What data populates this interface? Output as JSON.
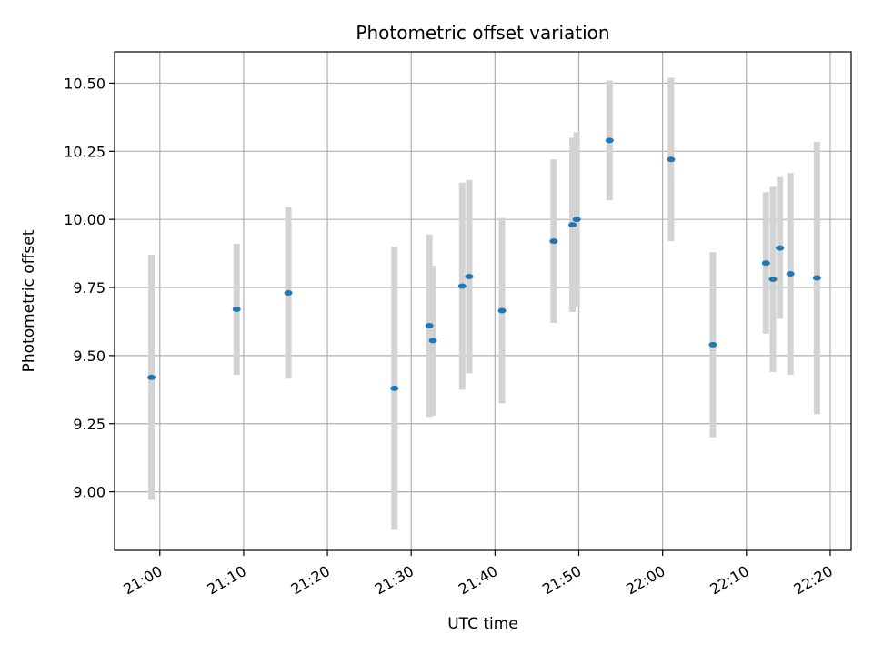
{
  "chart_data": {
    "type": "scatter",
    "title": "Photometric offset variation",
    "xlabel": "UTC time",
    "ylabel": "Photometric offset",
    "xlim": [
      "20:54:36",
      "22:22:30"
    ],
    "ylim": [
      8.785,
      10.615
    ],
    "x_ticks": [
      "21:00",
      "21:10",
      "21:20",
      "21:30",
      "21:40",
      "21:50",
      "22:00",
      "22:10",
      "22:20"
    ],
    "y_ticks": [
      "9.00",
      "9.25",
      "9.50",
      "9.75",
      "10.00",
      "10.25",
      "10.50"
    ],
    "grid": true,
    "colors": {
      "points": "#1f77b4",
      "error_bars": "#d3d3d3",
      "grid": "#b0b0b0"
    },
    "points": [
      {
        "x": "20:59:00",
        "y": 9.42,
        "err": 0.45
      },
      {
        "x": "21:09:10",
        "y": 9.67,
        "err": 0.24
      },
      {
        "x": "21:15:20",
        "y": 9.73,
        "err": 0.315
      },
      {
        "x": "21:28:00",
        "y": 9.38,
        "err": 0.52
      },
      {
        "x": "21:32:10",
        "y": 9.61,
        "err": 0.335
      },
      {
        "x": "21:32:35",
        "y": 9.555,
        "err": 0.275
      },
      {
        "x": "21:36:05",
        "y": 9.755,
        "err": 0.38
      },
      {
        "x": "21:36:55",
        "y": 9.79,
        "err": 0.355
      },
      {
        "x": "21:40:50",
        "y": 9.665,
        "err": 0.34
      },
      {
        "x": "21:47:00",
        "y": 9.92,
        "err": 0.3
      },
      {
        "x": "21:49:15",
        "y": 9.98,
        "err": 0.32
      },
      {
        "x": "21:49:45",
        "y": 10.0,
        "err": 0.32
      },
      {
        "x": "21:53:40",
        "y": 10.29,
        "err": 0.22
      },
      {
        "x": "22:01:00",
        "y": 10.22,
        "err": 0.3
      },
      {
        "x": "22:06:00",
        "y": 9.54,
        "err": 0.34
      },
      {
        "x": "22:12:20",
        "y": 9.84,
        "err": 0.26
      },
      {
        "x": "22:13:10",
        "y": 9.78,
        "err": 0.34
      },
      {
        "x": "22:14:00",
        "y": 9.895,
        "err": 0.26
      },
      {
        "x": "22:15:15",
        "y": 9.8,
        "err": 0.37
      },
      {
        "x": "22:18:25",
        "y": 9.785,
        "err": 0.5
      }
    ]
  }
}
